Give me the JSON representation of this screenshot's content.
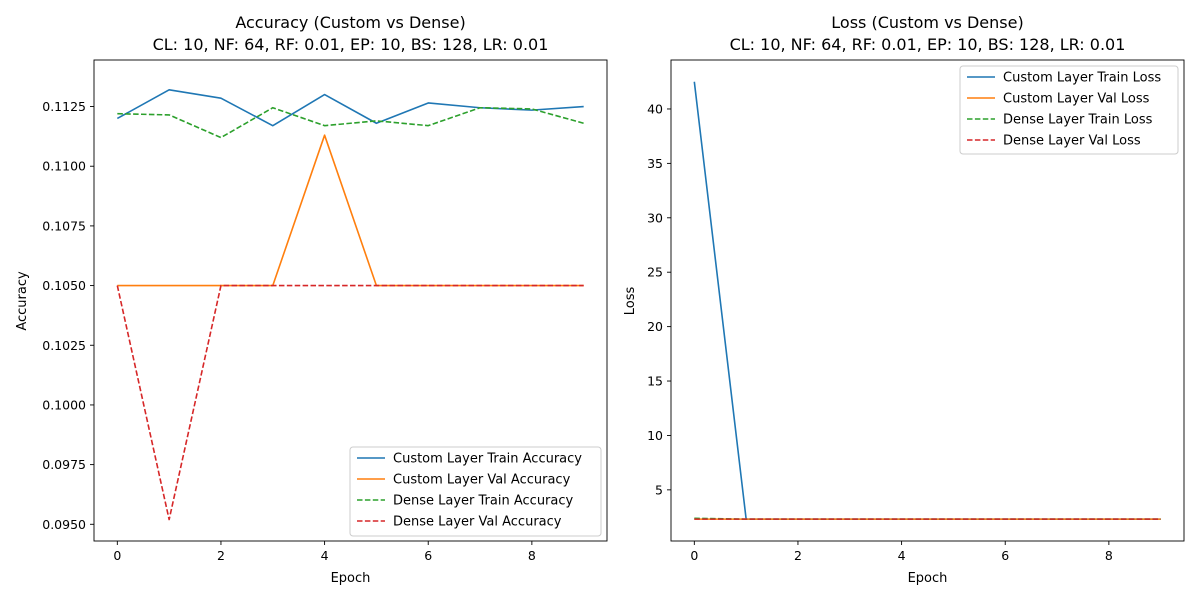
{
  "figure": {
    "colors": {
      "custom_train": "#1f77b4",
      "custom_val": "#ff7f0e",
      "dense_train": "#2ca02c",
      "dense_val": "#d62728"
    }
  },
  "chart_data": [
    {
      "type": "line",
      "title": "Accuracy (Custom vs Dense)",
      "subtitle": "CL: 10, NF: 64, RF: 0.01, EP: 10, BS: 128, LR: 0.01",
      "xlabel": "Epoch",
      "ylabel": "Accuracy",
      "xlim": [
        -0.45,
        9.45
      ],
      "ylim": [
        0.0943,
        0.11445
      ],
      "x_ticks": [
        0,
        2,
        4,
        6,
        8
      ],
      "x_tick_labels": [
        "0",
        "2",
        "4",
        "6",
        "8"
      ],
      "y_ticks": [
        0.095,
        0.0975,
        0.1,
        0.1025,
        0.105,
        0.1075,
        0.11,
        0.1125
      ],
      "y_tick_labels": [
        "0.0950",
        "0.0975",
        "0.1000",
        "0.1025",
        "0.1050",
        "0.1075",
        "0.1100",
        "0.1125"
      ],
      "grid": false,
      "legend_position": "lower-right",
      "x": [
        0,
        1,
        2,
        3,
        4,
        5,
        6,
        7,
        8,
        9
      ],
      "series": [
        {
          "name": "Custom Layer Train Accuracy",
          "color": "#1f77b4",
          "dash": "solid",
          "values": [
            0.112,
            0.1132,
            0.11285,
            0.1117,
            0.113,
            0.1118,
            0.11265,
            0.11245,
            0.11235,
            0.1125
          ]
        },
        {
          "name": "Custom Layer Val Accuracy",
          "color": "#ff7f0e",
          "dash": "solid",
          "values": [
            0.105,
            0.105,
            0.105,
            0.105,
            0.1113,
            0.105,
            0.105,
            0.105,
            0.105,
            0.105
          ]
        },
        {
          "name": "Dense Layer Train Accuracy",
          "color": "#2ca02c",
          "dash": "dashed",
          "values": [
            0.1122,
            0.11215,
            0.1112,
            0.11245,
            0.1117,
            0.1119,
            0.1117,
            0.11245,
            0.1124,
            0.1118
          ]
        },
        {
          "name": "Dense Layer Val Accuracy",
          "color": "#d62728",
          "dash": "dashed",
          "values": [
            0.105,
            0.0952,
            0.105,
            0.105,
            0.105,
            0.105,
            0.105,
            0.105,
            0.105,
            0.105
          ]
        }
      ]
    },
    {
      "type": "line",
      "title": "Loss (Custom vs Dense)",
      "subtitle": "CL: 10, NF: 64, RF: 0.01, EP: 10, BS: 128, LR: 0.01",
      "xlabel": "Epoch",
      "ylabel": "Loss",
      "xlim": [
        -0.45,
        9.45
      ],
      "ylim": [
        0.3,
        44.5
      ],
      "x_ticks": [
        0,
        2,
        4,
        6,
        8
      ],
      "x_tick_labels": [
        "0",
        "2",
        "4",
        "6",
        "8"
      ],
      "y_ticks": [
        5,
        10,
        15,
        20,
        25,
        30,
        35,
        40
      ],
      "y_tick_labels": [
        "5",
        "10",
        "15",
        "20",
        "25",
        "30",
        "35",
        "40"
      ],
      "grid": false,
      "legend_position": "upper-right",
      "x": [
        0,
        1,
        2,
        3,
        4,
        5,
        6,
        7,
        8,
        9
      ],
      "series": [
        {
          "name": "Custom Layer Train Loss",
          "color": "#1f77b4",
          "dash": "solid",
          "values": [
            42.5,
            2.31,
            2.31,
            2.31,
            2.31,
            2.31,
            2.31,
            2.31,
            2.31,
            2.31
          ]
        },
        {
          "name": "Custom Layer Val Loss",
          "color": "#ff7f0e",
          "dash": "solid",
          "values": [
            2.31,
            2.31,
            2.31,
            2.31,
            2.31,
            2.31,
            2.31,
            2.31,
            2.31,
            2.31
          ]
        },
        {
          "name": "Dense Layer Train Loss",
          "color": "#2ca02c",
          "dash": "dashed",
          "values": [
            2.38,
            2.31,
            2.31,
            2.31,
            2.31,
            2.31,
            2.31,
            2.31,
            2.31,
            2.31
          ]
        },
        {
          "name": "Dense Layer Val Loss",
          "color": "#d62728",
          "dash": "dashed",
          "values": [
            2.31,
            2.31,
            2.31,
            2.31,
            2.31,
            2.31,
            2.31,
            2.31,
            2.31,
            2.31
          ]
        }
      ]
    }
  ]
}
